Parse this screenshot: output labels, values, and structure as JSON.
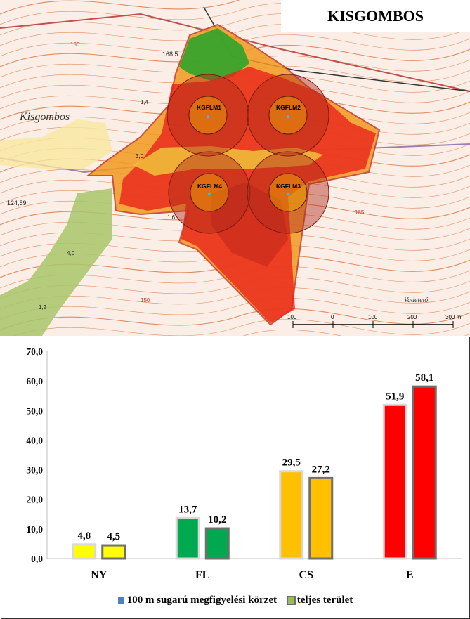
{
  "map": {
    "title": "KISGOMBOS",
    "village_label": "Kisgombos",
    "place_label": "Vadetető",
    "points": [
      "KGFLM1",
      "KGFLM2",
      "KGFLM4",
      "KGFLM3"
    ],
    "elevations": [
      "168,5",
      "124,59",
      "1,6",
      "4,0",
      "1,2",
      "3,0",
      "1,4"
    ],
    "contour_labels": [
      "150",
      "185",
      "150"
    ],
    "scale_labels": [
      "100",
      "0",
      "100",
      "200",
      "300 m"
    ],
    "colors": {
      "red": "#e8241c",
      "orange": "#f29a1f",
      "yellow": "#f7e27a",
      "green": "#2fa32b",
      "forest": "#8fb44a",
      "contour": "#d4622b"
    }
  },
  "chart_data": {
    "type": "bar",
    "categories": [
      "NY",
      "FL",
      "CS",
      "E"
    ],
    "series": [
      {
        "name": "100 m sugarú megfigyelési körzet",
        "values": [
          4.8,
          13.7,
          29.5,
          51.9
        ],
        "value_labels": [
          "4,8",
          "13,7",
          "29,5",
          "51,9"
        ],
        "border": "#d9d9d9"
      },
      {
        "name": "teljes terület",
        "values": [
          4.5,
          10.2,
          27.2,
          58.1
        ],
        "value_labels": [
          "4,5",
          "10,2",
          "27,2",
          "58,1"
        ],
        "border": "#6f6f6f"
      }
    ],
    "category_colors": [
      "#ffff00",
      "#00a84f",
      "#ffc000",
      "#ff0000"
    ],
    "legend_swatch_colors": [
      "#4f81bd",
      "#9bbb59"
    ],
    "ylim": [
      0,
      70
    ],
    "yticks": [
      "0,0",
      "10,0",
      "20,0",
      "30,0",
      "40,0",
      "50,0",
      "60,0",
      "70,0"
    ],
    "grid": false,
    "legend_position": "bottom"
  }
}
